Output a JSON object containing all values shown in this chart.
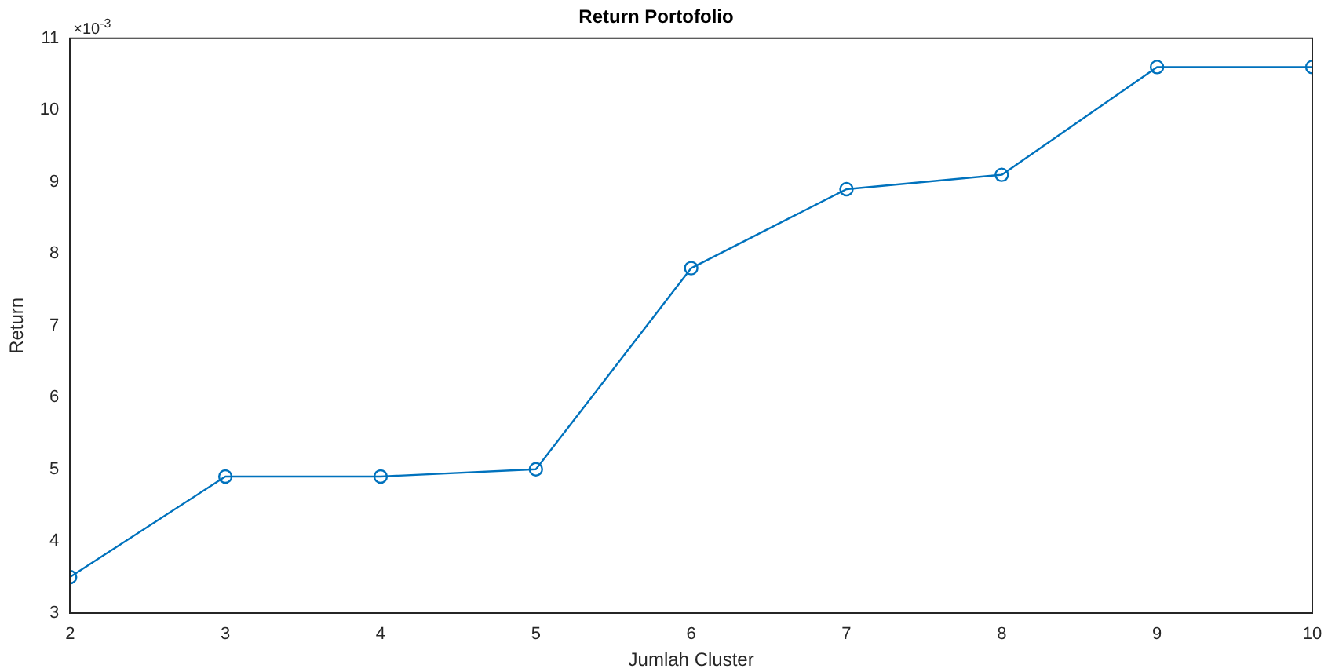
{
  "chart_data": {
    "type": "line",
    "title": "Return Portofolio",
    "xlabel": "Jumlah Cluster",
    "ylabel": "Return",
    "x": [
      2,
      3,
      4,
      5,
      6,
      7,
      8,
      9,
      10
    ],
    "series": [
      {
        "color": "#0072bd",
        "values": [
          3.5,
          4.9,
          4.9,
          5.0,
          7.8,
          8.9,
          9.1,
          10.6,
          10.6
        ]
      }
    ],
    "xlim": [
      2,
      10
    ],
    "xticks": [
      2,
      3,
      4,
      5,
      6,
      7,
      8,
      9,
      10
    ],
    "ylim": [
      3,
      11
    ],
    "yticks": [
      3,
      4,
      5,
      6,
      7,
      8,
      9,
      10,
      11
    ],
    "annotations": [
      "×10$^{-3}$"
    ],
    "marker": "circle",
    "line_style": "solid",
    "grid": false,
    "legend": false
  }
}
